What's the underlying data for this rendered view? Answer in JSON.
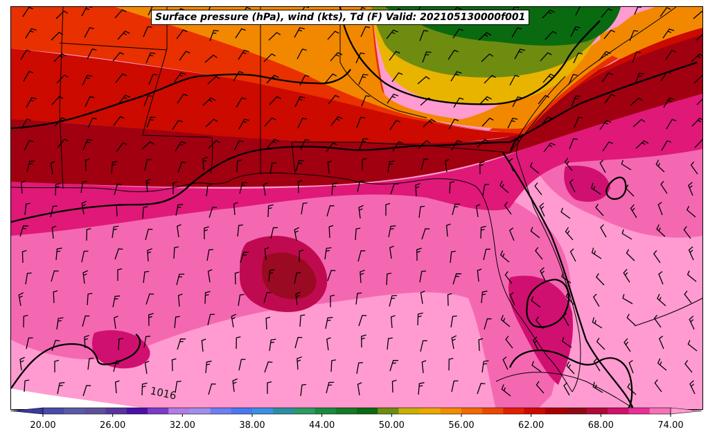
{
  "map": {
    "title": "Surface pressure (hPa), wind (kts), Td (F) Valid: 202105130000f001",
    "contour_labels": [
      "1016"
    ]
  },
  "colorbar": {
    "tick_labels": [
      "20.00",
      "26.00",
      "32.00",
      "38.00",
      "44.00",
      "50.00",
      "56.00",
      "62.00",
      "68.00",
      "74.00"
    ],
    "colors": [
      "#3a3aa0",
      "#494aa8",
      "#5a5aa6",
      "#5e5098",
      "#58359c",
      "#4a10a8",
      "#7a3cc8",
      "#b27ce4",
      "#a090e8",
      "#6f7ef0",
      "#4a78f0",
      "#3c8fe0",
      "#2e8ca0",
      "#2c9a62",
      "#1a8a3c",
      "#147a24",
      "#0a6a10",
      "#6e8c10",
      "#c8b000",
      "#eaa800",
      "#f28c00",
      "#f06a00",
      "#ea4800",
      "#e02000",
      "#cc0a00",
      "#aa0000",
      "#900a14",
      "#b00a3a",
      "#d0106a",
      "#e8309a",
      "#f870b8",
      "#ff9bd0"
    ]
  }
}
